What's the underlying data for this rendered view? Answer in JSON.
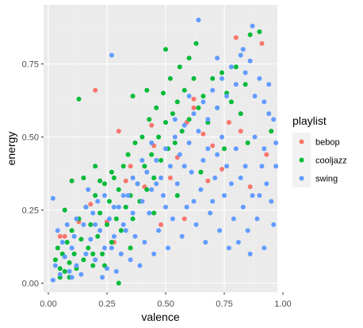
{
  "chart_data": {
    "type": "scatter",
    "title": "",
    "xlabel": "valence",
    "ylabel": "energy",
    "xlim": [
      0,
      1
    ],
    "ylim": [
      0,
      0.9
    ],
    "x_ticks": [
      "0.00",
      "0.25",
      "0.50",
      "0.75",
      "1.00"
    ],
    "y_ticks": [
      "0.00",
      "0.25",
      "0.50",
      "0.75"
    ],
    "grid": true,
    "legend": {
      "title": "playlist",
      "position": "right"
    },
    "series": [
      {
        "name": "bebop",
        "color": "#F8766D",
        "points": [
          [
            0.8,
            0.84
          ],
          [
            0.2,
            0.66
          ],
          [
            0.3,
            0.52
          ],
          [
            0.07,
            0.16
          ],
          [
            0.05,
            0.16
          ],
          [
            0.62,
            0.6
          ],
          [
            0.66,
            0.51
          ],
          [
            0.91,
            0.82
          ],
          [
            0.18,
            0.27
          ],
          [
            0.25,
            0.21
          ],
          [
            0.28,
            0.14
          ],
          [
            0.45,
            0.47
          ],
          [
            0.55,
            0.43
          ],
          [
            0.62,
            0.63
          ],
          [
            0.41,
            0.33
          ],
          [
            0.77,
            0.55
          ],
          [
            0.82,
            0.52
          ],
          [
            0.93,
            0.44
          ],
          [
            0.35,
            0.4
          ],
          [
            0.52,
            0.36
          ],
          [
            0.13,
            0.21
          ],
          [
            0.68,
            0.35
          ],
          [
            0.86,
            0.33
          ],
          [
            0.74,
            0.39
          ],
          [
            0.58,
            0.22
          ],
          [
            0.48,
            0.2
          ],
          [
            0.33,
            0.35
          ],
          [
            0.59,
            0.55
          ],
          [
            0.7,
            0.47
          ],
          [
            0.44,
            0.54
          ]
        ]
      },
      {
        "name": "cooljazz",
        "color": "#00BA38",
        "points": [
          [
            0.03,
            0.08
          ],
          [
            0.04,
            0.12
          ],
          [
            0.05,
            0.05
          ],
          [
            0.06,
            0.1
          ],
          [
            0.07,
            0.04
          ],
          [
            0.08,
            0.14
          ],
          [
            0.09,
            0.07
          ],
          [
            0.1,
            0.18
          ],
          [
            0.11,
            0.1
          ],
          [
            0.12,
            0.05
          ],
          [
            0.13,
            0.22
          ],
          [
            0.14,
            0.15
          ],
          [
            0.15,
            0.08
          ],
          [
            0.16,
            0.26
          ],
          [
            0.17,
            0.12
          ],
          [
            0.18,
            0.2
          ],
          [
            0.19,
            0.06
          ],
          [
            0.2,
            0.3
          ],
          [
            0.21,
            0.16
          ],
          [
            0.22,
            0.24
          ],
          [
            0.23,
            0.1
          ],
          [
            0.24,
            0.34
          ],
          [
            0.25,
            0.2
          ],
          [
            0.26,
            0.28
          ],
          [
            0.27,
            0.14
          ],
          [
            0.28,
            0.36
          ],
          [
            0.29,
            0.22
          ],
          [
            0.3,
            0.32
          ],
          [
            0.31,
            0.18
          ],
          [
            0.32,
            0.4
          ],
          [
            0.33,
            0.26
          ],
          [
            0.34,
            0.44
          ],
          [
            0.35,
            0.3
          ],
          [
            0.36,
            0.22
          ],
          [
            0.37,
            0.48
          ],
          [
            0.38,
            0.34
          ],
          [
            0.39,
            0.28
          ],
          [
            0.4,
            0.5
          ],
          [
            0.41,
            0.4
          ],
          [
            0.42,
            0.32
          ],
          [
            0.43,
            0.56
          ],
          [
            0.44,
            0.44
          ],
          [
            0.45,
            0.36
          ],
          [
            0.46,
            0.6
          ],
          [
            0.47,
            0.5
          ],
          [
            0.48,
            0.42
          ],
          [
            0.49,
            0.65
          ],
          [
            0.5,
            0.55
          ],
          [
            0.51,
            0.46
          ],
          [
            0.52,
            0.7
          ],
          [
            0.53,
            0.58
          ],
          [
            0.54,
            0.48
          ],
          [
            0.55,
            0.62
          ],
          [
            0.56,
            0.74
          ],
          [
            0.57,
            0.52
          ],
          [
            0.58,
            0.66
          ],
          [
            0.6,
            0.56
          ],
          [
            0.62,
            0.7
          ],
          [
            0.64,
            0.6
          ],
          [
            0.66,
            0.64
          ],
          [
            0.68,
            0.55
          ],
          [
            0.7,
            0.7
          ],
          [
            0.72,
            0.6
          ],
          [
            0.74,
            0.72
          ],
          [
            0.76,
            0.65
          ],
          [
            0.78,
            0.62
          ],
          [
            0.8,
            0.74
          ],
          [
            0.82,
            0.58
          ],
          [
            0.84,
            0.68
          ],
          [
            0.86,
            0.85
          ],
          [
            0.9,
            0.86
          ],
          [
            0.13,
            0.63
          ],
          [
            0.5,
            0.8
          ],
          [
            0.6,
            0.77
          ],
          [
            0.07,
            0.25
          ],
          [
            0.1,
            0.35
          ],
          [
            0.15,
            0.36
          ],
          [
            0.2,
            0.4
          ],
          [
            0.22,
            0.35
          ],
          [
            0.27,
            0.38
          ],
          [
            0.36,
            0.64
          ],
          [
            0.42,
            0.66
          ],
          [
            0.3,
            0.0
          ],
          [
            0.05,
            0.02
          ],
          [
            0.09,
            0.02
          ],
          [
            0.19,
            0.1
          ],
          [
            0.24,
            0.06
          ],
          [
            0.35,
            0.12
          ],
          [
            0.45,
            0.24
          ],
          [
            0.55,
            0.3
          ],
          [
            0.65,
            0.38
          ],
          [
            0.75,
            0.46
          ],
          [
            0.85,
            0.48
          ],
          [
            0.95,
            0.52
          ],
          [
            0.63,
            0.82
          ]
        ]
      },
      {
        "name": "swing",
        "color": "#619CFF",
        "points": [
          [
            0.64,
            0.9
          ],
          [
            0.87,
            0.88
          ],
          [
            0.27,
            0.78
          ],
          [
            0.83,
            0.8
          ],
          [
            0.72,
            0.77
          ],
          [
            0.02,
            0.29
          ],
          [
            0.03,
            0.06
          ],
          [
            0.05,
            0.03
          ],
          [
            0.07,
            0.09
          ],
          [
            0.09,
            0.04
          ],
          [
            0.1,
            0.12
          ],
          [
            0.12,
            0.06
          ],
          [
            0.14,
            0.03
          ],
          [
            0.16,
            0.1
          ],
          [
            0.18,
            0.15
          ],
          [
            0.2,
            0.08
          ],
          [
            0.22,
            0.18
          ],
          [
            0.24,
            0.12
          ],
          [
            0.26,
            0.22
          ],
          [
            0.28,
            0.16
          ],
          [
            0.3,
            0.26
          ],
          [
            0.32,
            0.2
          ],
          [
            0.34,
            0.3
          ],
          [
            0.36,
            0.24
          ],
          [
            0.38,
            0.34
          ],
          [
            0.4,
            0.28
          ],
          [
            0.42,
            0.38
          ],
          [
            0.44,
            0.32
          ],
          [
            0.46,
            0.42
          ],
          [
            0.48,
            0.36
          ],
          [
            0.5,
            0.46
          ],
          [
            0.52,
            0.4
          ],
          [
            0.54,
            0.5
          ],
          [
            0.56,
            0.44
          ],
          [
            0.58,
            0.54
          ],
          [
            0.6,
            0.48
          ],
          [
            0.62,
            0.58
          ],
          [
            0.64,
            0.52
          ],
          [
            0.66,
            0.62
          ],
          [
            0.68,
            0.56
          ],
          [
            0.7,
            0.66
          ],
          [
            0.72,
            0.6
          ],
          [
            0.74,
            0.7
          ],
          [
            0.76,
            0.64
          ],
          [
            0.78,
            0.74
          ],
          [
            0.8,
            0.68
          ],
          [
            0.82,
            0.78
          ],
          [
            0.84,
            0.72
          ],
          [
            0.86,
            0.76
          ],
          [
            0.88,
            0.64
          ],
          [
            0.9,
            0.7
          ],
          [
            0.92,
            0.62
          ],
          [
            0.94,
            0.68
          ],
          [
            0.96,
            0.56
          ],
          [
            0.95,
            0.28
          ],
          [
            0.93,
            0.34
          ],
          [
            0.91,
            0.4
          ],
          [
            0.89,
            0.22
          ],
          [
            0.87,
            0.3
          ],
          [
            0.85,
            0.18
          ],
          [
            0.83,
            0.26
          ],
          [
            0.81,
            0.14
          ],
          [
            0.79,
            0.22
          ],
          [
            0.77,
            0.12
          ],
          [
            0.75,
            0.3
          ],
          [
            0.73,
            0.18
          ],
          [
            0.71,
            0.36
          ],
          [
            0.69,
            0.24
          ],
          [
            0.67,
            0.14
          ],
          [
            0.65,
            0.32
          ],
          [
            0.63,
            0.2
          ],
          [
            0.61,
            0.38
          ],
          [
            0.59,
            0.26
          ],
          [
            0.57,
            0.16
          ],
          [
            0.55,
            0.34
          ],
          [
            0.53,
            0.22
          ],
          [
            0.51,
            0.12
          ],
          [
            0.49,
            0.3
          ],
          [
            0.47,
            0.18
          ],
          [
            0.45,
            0.1
          ],
          [
            0.43,
            0.24
          ],
          [
            0.41,
            0.14
          ],
          [
            0.39,
            0.06
          ],
          [
            0.37,
            0.16
          ],
          [
            0.35,
            0.08
          ],
          [
            0.33,
            0.18
          ],
          [
            0.31,
            0.1
          ],
          [
            0.29,
            0.04
          ],
          [
            0.27,
            0.12
          ],
          [
            0.25,
            0.05
          ],
          [
            0.23,
            0.02
          ],
          [
            0.21,
            0.28
          ],
          [
            0.19,
            0.24
          ],
          [
            0.17,
            0.32
          ],
          [
            0.15,
            0.2
          ],
          [
            0.11,
            0.16
          ],
          [
            0.08,
            0.2
          ],
          [
            0.06,
            0.14
          ],
          [
            0.04,
            0.18
          ],
          [
            0.02,
            0.01
          ],
          [
            0.97,
            0.48
          ],
          [
            0.97,
            0.4
          ],
          [
            0.96,
            0.2
          ],
          [
            0.92,
            0.12
          ],
          [
            0.86,
            0.1
          ],
          [
            0.78,
            0.34
          ],
          [
            0.72,
            0.44
          ],
          [
            0.66,
            0.42
          ],
          [
            0.6,
            0.64
          ],
          [
            0.54,
            0.56
          ],
          [
            0.8,
            0.46
          ],
          [
            0.84,
            0.4
          ],
          [
            0.88,
            0.5
          ],
          [
            0.92,
            0.46
          ],
          [
            0.94,
            0.58
          ],
          [
            0.7,
            0.28
          ],
          [
            0.74,
            0.5
          ],
          [
            0.76,
            0.4
          ],
          [
            0.82,
            0.36
          ],
          [
            0.9,
            0.3
          ],
          [
            0.68,
            0.46
          ],
          [
            0.62,
            0.28
          ],
          [
            0.58,
            0.4
          ],
          [
            0.5,
            0.26
          ],
          [
            0.46,
            0.34
          ],
          [
            0.44,
            0.48
          ],
          [
            0.4,
            0.42
          ],
          [
            0.36,
            0.36
          ],
          [
            0.32,
            0.3
          ],
          [
            0.28,
            0.26
          ],
          [
            0.24,
            0.3
          ],
          [
            0.2,
            0.2
          ],
          [
            0.16,
            0.26
          ],
          [
            0.12,
            0.22
          ],
          [
            0.1,
            0.02
          ]
        ]
      }
    ]
  }
}
